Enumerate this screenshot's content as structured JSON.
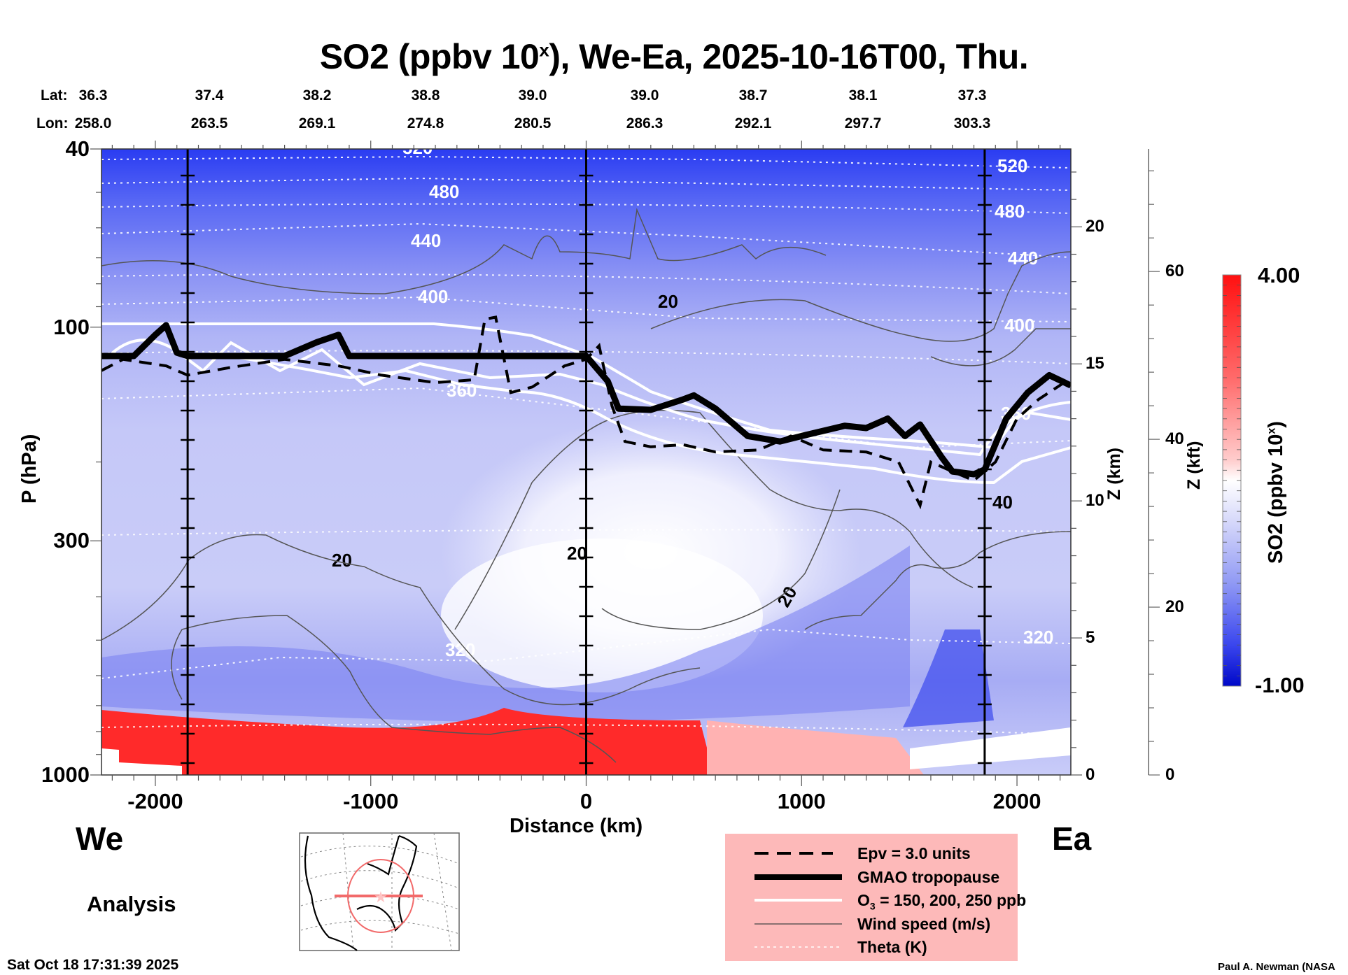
{
  "chart_data": {
    "type": "heatmap",
    "title": "SO2 (ppbv 10^x), We-Ea, 2025-10-16T00, Thu.",
    "title_parts": {
      "pre": "SO2 (ppbv 10",
      "sup": "x",
      "post": "), We-Ea, 2025-10-16T00, Thu."
    },
    "xlabel": "Distance (km)",
    "ylabel": "P (hPa)",
    "y2label": "Z (km)",
    "y3label": "Z (kft)",
    "xlim": [
      -2250,
      2250
    ],
    "ylim_hpa": [
      1000,
      40
    ],
    "x_ticks": [
      -2000,
      -1000,
      0,
      1000,
      2000
    ],
    "x_tick_labels": [
      "-2000",
      "-1000",
      "0",
      "1000",
      "2000"
    ],
    "p_ticks": [
      40,
      100,
      300,
      1000
    ],
    "p_tick_labels": [
      "40",
      "100",
      "300",
      "1000"
    ],
    "z_km_ticks": [
      0,
      5,
      10,
      15,
      20
    ],
    "z_km_tick_labels": [
      "0",
      "5",
      "10",
      "15",
      "20"
    ],
    "z_kft_ticks": [
      0,
      20,
      40,
      60
    ],
    "z_kft_tick_labels": [
      "0",
      "20",
      "40",
      "60"
    ],
    "lat_label": "Lat:",
    "lon_label": "Lon:",
    "lat_values": [
      "36.3",
      "37.4",
      "38.2",
      "38.8",
      "39.0",
      "39.0",
      "38.7",
      "38.1",
      "37.3"
    ],
    "lon_values": [
      "258.0",
      "263.5",
      "269.1",
      "274.8",
      "280.5",
      "286.3",
      "292.1",
      "297.7",
      "303.3"
    ],
    "colorbar": {
      "label_pre": "SO2 (ppbv 10",
      "label_sup": "x",
      "label_post": ")",
      "min": -1.0,
      "max": 4.0,
      "min_label": "-1.00",
      "max_label": "4.00",
      "colors": [
        "#0000c8",
        "#ffffff",
        "#ff0000"
      ]
    },
    "theta_contours_K": [
      {
        "value": 520,
        "label": "520"
      },
      {
        "value": 480,
        "label": "480"
      },
      {
        "value": 440,
        "label": "440"
      },
      {
        "value": 400,
        "label": "400"
      },
      {
        "value": 360,
        "label": "360"
      },
      {
        "value": 320,
        "label": "320"
      }
    ],
    "wind_speed_contour_labels": [
      "20",
      "20",
      "20",
      "20",
      "40",
      "40",
      "40"
    ],
    "vertical_reference_lines_km": [
      -1850,
      0,
      1850
    ],
    "tropopause_hpa": [
      [
        -2250,
        116
      ],
      [
        -2100,
        116
      ],
      [
        -2000,
        104
      ],
      [
        -1950,
        99
      ],
      [
        -1900,
        114
      ],
      [
        -1850,
        116
      ],
      [
        -1400,
        116
      ],
      [
        -1250,
        108
      ],
      [
        -1150,
        104
      ],
      [
        -1100,
        116
      ],
      [
        -500,
        116
      ],
      [
        0,
        116
      ],
      [
        100,
        132
      ],
      [
        150,
        152
      ],
      [
        300,
        153
      ],
      [
        450,
        145
      ],
      [
        500,
        142
      ],
      [
        600,
        152
      ],
      [
        750,
        175
      ],
      [
        900,
        180
      ],
      [
        1000,
        175
      ],
      [
        1200,
        166
      ],
      [
        1300,
        168
      ],
      [
        1400,
        160
      ],
      [
        1480,
        175
      ],
      [
        1550,
        165
      ],
      [
        1650,
        195
      ],
      [
        1700,
        210
      ],
      [
        1800,
        213
      ],
      [
        1850,
        208
      ],
      [
        1950,
        160
      ],
      [
        2050,
        140
      ],
      [
        2150,
        128
      ],
      [
        2250,
        135
      ]
    ],
    "epv_hpa": [
      [
        -2250,
        125
      ],
      [
        -2150,
        118
      ],
      [
        -2050,
        120
      ],
      [
        -1950,
        122
      ],
      [
        -1850,
        128
      ],
      [
        -1650,
        123
      ],
      [
        -1400,
        118
      ],
      [
        -1150,
        122
      ],
      [
        -950,
        128
      ],
      [
        -700,
        133
      ],
      [
        -520,
        131
      ],
      [
        -470,
        96
      ],
      [
        -420,
        95
      ],
      [
        -350,
        140
      ],
      [
        -250,
        136
      ],
      [
        -100,
        122
      ],
      [
        0,
        118
      ],
      [
        60,
        110
      ],
      [
        120,
        150
      ],
      [
        180,
        180
      ],
      [
        300,
        185
      ],
      [
        450,
        183
      ],
      [
        600,
        190
      ],
      [
        800,
        188
      ],
      [
        950,
        175
      ],
      [
        1100,
        188
      ],
      [
        1300,
        190
      ],
      [
        1450,
        200
      ],
      [
        1550,
        250
      ],
      [
        1600,
        200
      ],
      [
        1700,
        210
      ],
      [
        1800,
        220
      ],
      [
        1900,
        200
      ],
      [
        2000,
        160
      ],
      [
        2100,
        145
      ],
      [
        2250,
        130
      ]
    ],
    "legend": [
      {
        "style": "dashed-thick",
        "label": "Epv = 3.0 units"
      },
      {
        "style": "solid-thick",
        "label": "GMAO tropopause"
      },
      {
        "style": "white-solid",
        "label": "O3 = 150, 200, 250 ppb",
        "label_pre": "O",
        "label_sub": "3",
        "label_post": " = 150, 200, 250 ppb"
      },
      {
        "style": "thin-solid",
        "label": "Wind speed (m/s)"
      },
      {
        "style": "white-dotted",
        "label": "Theta (K)"
      }
    ],
    "legend_placement": "bottom-center"
  },
  "labels": {
    "west": "We",
    "east": "Ea",
    "analysis": "Analysis",
    "timestamp": "Sat Oct 18 17:31:39 2025",
    "credit": "Paul A. Newman (NASA"
  }
}
